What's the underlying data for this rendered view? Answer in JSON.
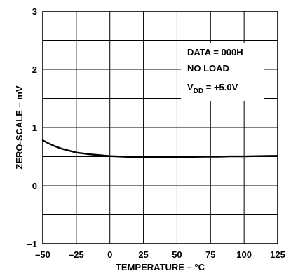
{
  "chart_data": {
    "type": "line",
    "xlabel": "TEMPERATURE – °C",
    "ylabel": "ZERO-SCALE – mV",
    "xlim": [
      -50,
      125
    ],
    "ylim": [
      -1,
      3
    ],
    "grid": true,
    "x_ticks": [
      "–50",
      "–25",
      "0",
      "25",
      "50",
      "75",
      "100",
      "125"
    ],
    "y_ticks": [
      "–1",
      "0",
      "1",
      "2",
      "3"
    ],
    "annotations": {
      "line1": "DATA = 000H",
      "line2": "NO LOAD",
      "line3_main": "V",
      "line3_sub": "DD",
      "line3_rest": " = +5.0V"
    },
    "series": [
      {
        "x": [
          -50,
          -45,
          -40,
          -35,
          -30,
          -25,
          -20,
          -15,
          -10,
          -5,
          0,
          10,
          20,
          30,
          40,
          50,
          60,
          70,
          80,
          90,
          100,
          110,
          125
        ],
        "y": [
          0.78,
          0.72,
          0.67,
          0.63,
          0.6,
          0.57,
          0.555,
          0.54,
          0.53,
          0.52,
          0.51,
          0.5,
          0.49,
          0.485,
          0.485,
          0.49,
          0.495,
          0.5,
          0.5,
          0.505,
          0.505,
          0.51,
          0.515
        ]
      }
    ]
  }
}
